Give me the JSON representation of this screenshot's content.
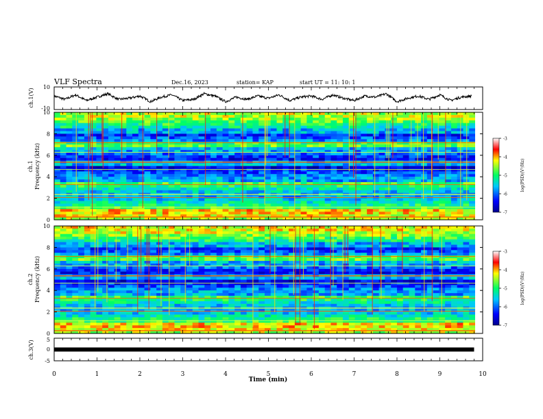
{
  "header": {
    "title": "VLF Spectra",
    "date": "Dec.16, 2023",
    "station": "station= KAP",
    "start": "start  UT =   11: 10: 1"
  },
  "chart_data": [
    {
      "type": "line",
      "panel": "ch1-waveform",
      "ylabel": "ch.1(V)",
      "ylim": [
        -10,
        10
      ],
      "yticks": [
        "10",
        "-10"
      ],
      "xlim": [
        0,
        10
      ],
      "series_color": "#000000",
      "x": [
        0,
        0.25,
        0.5,
        0.75,
        1,
        1.25,
        1.5,
        1.75,
        2,
        2.25,
        2.5,
        2.75,
        3,
        3.25,
        3.5,
        3.75,
        4,
        4.25,
        4.5,
        4.75,
        5,
        5.25,
        5.5,
        5.75,
        6,
        6.25,
        6.5,
        6.75,
        7,
        7.25,
        7.5,
        7.75,
        8,
        8.25,
        8.5,
        8.75,
        9,
        9.25,
        9.5,
        9.75
      ],
      "values": [
        2,
        -1,
        3,
        -2,
        1,
        4,
        -1,
        0,
        2,
        -3,
        1,
        3,
        -2,
        -1,
        4,
        2,
        -3,
        1,
        -1,
        2,
        0,
        3,
        -2,
        1,
        2,
        -1,
        3,
        0,
        -2,
        2,
        1,
        4,
        -3,
        0,
        2,
        -1,
        3,
        -2,
        1,
        2
      ]
    },
    {
      "type": "heatmap",
      "panel": "ch1-spectrogram",
      "ylabel_top": "ch.1",
      "ylabel": "Frequency (kHz)",
      "ylim": [
        0,
        10
      ],
      "yticks": [
        "0",
        "2",
        "4",
        "6",
        "8",
        "10"
      ],
      "xlim": [
        0,
        10
      ],
      "colorbar": {
        "label": "log(PSD)(V²/Hz)",
        "range": [
          -7,
          -3
        ],
        "ticks": [
          "-3",
          "-4",
          "-5",
          "-6",
          "-7"
        ]
      }
    },
    {
      "type": "heatmap",
      "panel": "ch2-spectrogram",
      "ylabel_top": "ch.2",
      "ylabel": "Frequency (kHz)",
      "ylim": [
        0,
        10
      ],
      "yticks": [
        "0",
        "2",
        "4",
        "6",
        "8",
        "10"
      ],
      "xlim": [
        0,
        10
      ],
      "colorbar": {
        "label": "log(PSD)(V²/Hz)",
        "range": [
          -7,
          -3
        ],
        "ticks": [
          "-3",
          "-4",
          "-5",
          "-6",
          "-7"
        ]
      }
    },
    {
      "type": "line",
      "panel": "ch3-waveform",
      "ylabel": "ch.3(V)",
      "ylim": [
        -5,
        5
      ],
      "yticks": [
        "5",
        "0",
        "-5"
      ],
      "xlim": [
        0,
        9.8
      ],
      "constant_value": 0,
      "series_color": "#000000"
    }
  ],
  "xaxis": {
    "label": "Time  (min)",
    "ticks": [
      "0",
      "1",
      "2",
      "3",
      "4",
      "5",
      "6",
      "7",
      "8",
      "9",
      "10"
    ]
  }
}
